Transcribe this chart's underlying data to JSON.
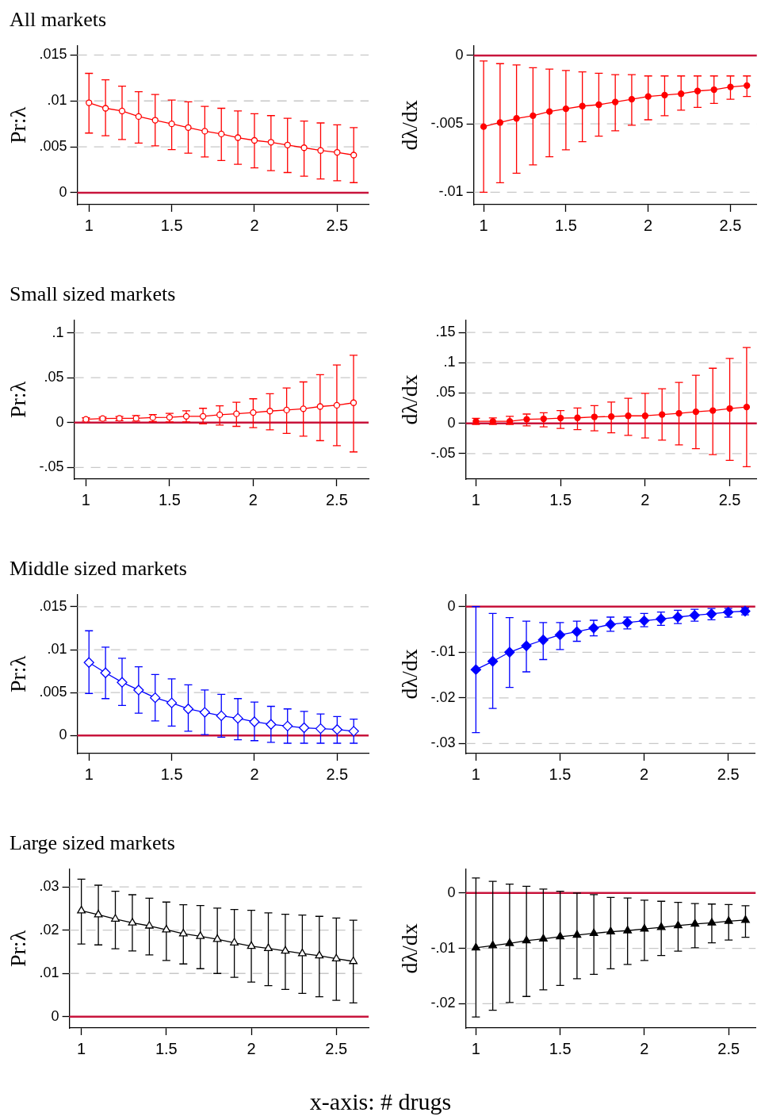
{
  "chart_data": [
    {
      "type": "line",
      "title": "All markets",
      "ylabel": "Pr:λ",
      "color": "#ff0000",
      "marker": "circle",
      "grid": "y",
      "xlim": [
        0.93,
        2.69
      ],
      "xticks": [
        1,
        1.5,
        2,
        2.5
      ],
      "ylim": [
        -0.0013,
        0.016
      ],
      "yticks": [
        {
          "value": 0,
          "label": "0"
        },
        {
          "value": 0.005,
          "label": ".005"
        },
        {
          "value": 0.01,
          "label": ".01"
        },
        {
          "value": 0.015,
          "label": ".015"
        }
      ],
      "ref_lines": [
        {
          "axis": "y",
          "value": 0,
          "color": "#c8143c"
        }
      ],
      "x": [
        1,
        1.1,
        1.2,
        1.3,
        1.4,
        1.5,
        1.6,
        1.7,
        1.8,
        1.9,
        2,
        2.1,
        2.2,
        2.3,
        2.4,
        2.5,
        2.6
      ],
      "values": [
        0.0098,
        0.0092,
        0.0089,
        0.0083,
        0.0079,
        0.0075,
        0.0071,
        0.0067,
        0.0064,
        0.006,
        0.0057,
        0.0055,
        0.0052,
        0.0049,
        0.0046,
        0.0044,
        0.0041
      ],
      "errors": [
        [
          0.0065,
          0.013
        ],
        [
          0.0062,
          0.0123
        ],
        [
          0.0058,
          0.0116
        ],
        [
          0.0054,
          0.011
        ],
        [
          0.0051,
          0.0107
        ],
        [
          0.0047,
          0.0101
        ],
        [
          0.0043,
          0.0099
        ],
        [
          0.0039,
          0.0094
        ],
        [
          0.0035,
          0.0092
        ],
        [
          0.0031,
          0.0089
        ],
        [
          0.0027,
          0.0086
        ],
        [
          0.0024,
          0.0084
        ],
        [
          0.0022,
          0.0081
        ],
        [
          0.0018,
          0.0078
        ],
        [
          0.0015,
          0.0076
        ],
        [
          0.0013,
          0.0074
        ],
        [
          0.0011,
          0.0071
        ]
      ]
    },
    {
      "type": "line",
      "ylabel": "dλ/dx",
      "color": "#ff0000",
      "marker": "circle",
      "grid": "y",
      "xlim": [
        0.94,
        2.66
      ],
      "xticks": [
        1,
        1.5,
        2,
        2.5
      ],
      "ylim": [
        -0.0109,
        0.0007
      ],
      "yticks": [
        {
          "value": -0.01,
          "label": "-.01"
        },
        {
          "value": -0.005,
          "label": "-.005"
        },
        {
          "value": 0,
          "label": "0"
        }
      ],
      "ref_lines": [
        {
          "axis": "y",
          "value": 0,
          "color": "#c8143c"
        }
      ],
      "x": [
        1,
        1.1,
        1.2,
        1.3,
        1.4,
        1.5,
        1.6,
        1.7,
        1.8,
        1.9,
        2,
        2.1,
        2.2,
        2.3,
        2.4,
        2.5,
        2.6
      ],
      "values": [
        -0.0052,
        -0.0049,
        -0.0046,
        -0.0044,
        -0.0041,
        -0.0039,
        -0.0037,
        -0.0036,
        -0.0034,
        -0.0032,
        -0.003,
        -0.0029,
        -0.0028,
        -0.0026,
        -0.0025,
        -0.0023,
        -0.0022
      ],
      "errors": [
        [
          -0.01,
          -0.0004
        ],
        [
          -0.0093,
          -0.0006
        ],
        [
          -0.0086,
          -0.0007
        ],
        [
          -0.008,
          -0.0009
        ],
        [
          -0.0074,
          -0.001
        ],
        [
          -0.0069,
          -0.0011
        ],
        [
          -0.0063,
          -0.0012
        ],
        [
          -0.0059,
          -0.0013
        ],
        [
          -0.0055,
          -0.0014
        ],
        [
          -0.0051,
          -0.0014
        ],
        [
          -0.0047,
          -0.0015
        ],
        [
          -0.0044,
          -0.0015
        ],
        [
          -0.004,
          -0.0015
        ],
        [
          -0.0038,
          -0.0015
        ],
        [
          -0.0035,
          -0.0015
        ],
        [
          -0.0032,
          -0.0015
        ],
        [
          -0.003,
          -0.0015
        ]
      ]
    },
    {
      "type": "line",
      "title": "Small sized markets",
      "ylabel": "Pr:λ",
      "color": "#ff0000",
      "marker": "circle",
      "grid": "y",
      "xlim": [
        0.93,
        2.69
      ],
      "xticks": [
        1,
        1.5,
        2,
        2.5
      ],
      "ylim": [
        -0.063,
        0.114
      ],
      "yticks": [
        {
          "value": -0.05,
          "label": "-.05"
        },
        {
          "value": 0,
          "label": "0"
        },
        {
          "value": 0.05,
          "label": ".05"
        },
        {
          "value": 0.1,
          "label": ".1"
        }
      ],
      "ref_lines": [
        {
          "axis": "y",
          "value": 0,
          "color": "#c8143c"
        }
      ],
      "x": [
        1,
        1.1,
        1.2,
        1.3,
        1.4,
        1.5,
        1.6,
        1.7,
        1.8,
        1.9,
        2,
        2.1,
        2.2,
        2.3,
        2.4,
        2.5,
        2.6
      ],
      "values": [
        0.0036,
        0.0045,
        0.0047,
        0.0047,
        0.0056,
        0.0059,
        0.007,
        0.007,
        0.0087,
        0.0098,
        0.0112,
        0.0128,
        0.014,
        0.0154,
        0.0179,
        0.0193,
        0.0221
      ],
      "errors": [
        [
          0.0017,
          0.0053
        ],
        [
          0.0025,
          0.0061
        ],
        [
          0.0022,
          0.0067
        ],
        [
          0.0017,
          0.0078
        ],
        [
          0.0011,
          0.0089
        ],
        [
          0.0008,
          0.0103
        ],
        [
          0.0008,
          0.0131
        ],
        [
          -0.0014,
          0.0159
        ],
        [
          -0.0028,
          0.0187
        ],
        [
          -0.0042,
          0.0226
        ],
        [
          -0.0056,
          0.0265
        ],
        [
          -0.0081,
          0.0321
        ],
        [
          -0.012,
          0.0385
        ],
        [
          -0.0151,
          0.0453
        ],
        [
          -0.0201,
          0.0534
        ],
        [
          -0.0257,
          0.0642
        ],
        [
          -0.0327,
          0.0751
        ]
      ]
    },
    {
      "type": "line",
      "ylabel": "dλ/dx",
      "color": "#ff0000",
      "marker": "circle",
      "grid": "y",
      "xlim": [
        0.94,
        2.66
      ],
      "xticks": [
        1,
        1.5,
        2,
        2.5
      ],
      "ylim": [
        -0.092,
        0.17
      ],
      "yticks": [
        {
          "value": -0.05,
          "label": "-.05"
        },
        {
          "value": 0,
          "label": "0"
        },
        {
          "value": 0.05,
          "label": ".05"
        },
        {
          "value": 0.1,
          "label": ".1"
        },
        {
          "value": 0.15,
          "label": ".15"
        }
      ],
      "ref_lines": [
        {
          "axis": "y",
          "value": 0,
          "color": "#c8143c"
        }
      ],
      "x": [
        1,
        1.1,
        1.2,
        1.3,
        1.4,
        1.5,
        1.6,
        1.7,
        1.8,
        1.9,
        2,
        2.1,
        2.2,
        2.3,
        2.4,
        2.5,
        2.6
      ],
      "values": [
        0.0033,
        0.0033,
        0.0033,
        0.0066,
        0.0074,
        0.0087,
        0.0091,
        0.0107,
        0.0112,
        0.0124,
        0.0124,
        0.0145,
        0.0165,
        0.019,
        0.0211,
        0.0244,
        0.0269
      ],
      "errors": [
        [
          -0.0017,
          0.0083
        ],
        [
          -0.0017,
          0.009
        ],
        [
          -0.0017,
          0.0116
        ],
        [
          -0.0041,
          0.0153
        ],
        [
          -0.0058,
          0.0174
        ],
        [
          -0.0083,
          0.0211
        ],
        [
          -0.0103,
          0.0252
        ],
        [
          -0.0124,
          0.0293
        ],
        [
          -0.0157,
          0.0351
        ],
        [
          -0.0198,
          0.0413
        ],
        [
          -0.024,
          0.0496
        ],
        [
          -0.0277,
          0.057
        ],
        [
          -0.0355,
          0.0674
        ],
        [
          -0.0417,
          0.0793
        ],
        [
          -0.0517,
          0.0909
        ],
        [
          -0.0612,
          0.107
        ],
        [
          -0.0715,
          0.1252
        ]
      ]
    },
    {
      "type": "line",
      "title": "Middle sized markets",
      "ylabel": "Pr:λ",
      "color": "#0000ff",
      "marker": "diamond",
      "grid": "y",
      "xlim": [
        0.93,
        2.69
      ],
      "xticks": [
        1,
        1.5,
        2,
        2.5
      ],
      "ylim": [
        -0.0021,
        0.0164
      ],
      "yticks": [
        {
          "value": 0,
          "label": "0"
        },
        {
          "value": 0.005,
          "label": ".005"
        },
        {
          "value": 0.01,
          "label": ".01"
        },
        {
          "value": 0.015,
          "label": ".015"
        }
      ],
      "ref_lines": [
        {
          "axis": "y",
          "value": 0,
          "color": "#c8143c"
        }
      ],
      "x": [
        1,
        1.1,
        1.2,
        1.3,
        1.4,
        1.5,
        1.6,
        1.7,
        1.8,
        1.9,
        2,
        2.1,
        2.2,
        2.3,
        2.4,
        2.5,
        2.6
      ],
      "values": [
        0.0085,
        0.0073,
        0.0062,
        0.0053,
        0.0044,
        0.0038,
        0.0031,
        0.0027,
        0.0023,
        0.002,
        0.0016,
        0.0013,
        0.0011,
        0.0009,
        0.0008,
        0.0007,
        0.0005
      ],
      "errors": [
        [
          0.0049,
          0.0122
        ],
        [
          0.0043,
          0.0103
        ],
        [
          0.0035,
          0.009
        ],
        [
          0.0026,
          0.008
        ],
        [
          0.0017,
          0.0071
        ],
        [
          0.0011,
          0.0066
        ],
        [
          0.0005,
          0.0059
        ],
        [
          0.0001,
          0.0053
        ],
        [
          -0.0002,
          0.0048
        ],
        [
          -0.0005,
          0.0043
        ],
        [
          -0.0006,
          0.0039
        ],
        [
          -0.0008,
          0.0034
        ],
        [
          -0.0009,
          0.0031
        ],
        [
          -0.0009,
          0.0028
        ],
        [
          -0.0009,
          0.0025
        ],
        [
          -0.0009,
          0.0022
        ],
        [
          -0.0009,
          0.0019
        ]
      ]
    },
    {
      "type": "line",
      "ylabel": "dλ/dx",
      "color": "#0000ff",
      "marker": "diamond",
      "grid": "y",
      "xlim": [
        0.94,
        2.66
      ],
      "xticks": [
        1,
        1.5,
        2,
        2.5
      ],
      "ylim": [
        -0.0322,
        0.0026
      ],
      "yticks": [
        {
          "value": -0.03,
          "label": "-.03"
        },
        {
          "value": -0.02,
          "label": "-.02"
        },
        {
          "value": -0.01,
          "label": "-.01"
        },
        {
          "value": 0,
          "label": "0"
        }
      ],
      "ref_lines": [
        {
          "axis": "y",
          "value": 0,
          "color": "#c8143c"
        }
      ],
      "x": [
        1,
        1.1,
        1.2,
        1.3,
        1.4,
        1.5,
        1.6,
        1.7,
        1.8,
        1.9,
        2,
        2.1,
        2.2,
        2.3,
        2.4,
        2.5,
        2.6
      ],
      "values": [
        -0.0138,
        -0.012,
        -0.01,
        -0.0086,
        -0.0073,
        -0.0062,
        -0.0055,
        -0.0047,
        -0.0039,
        -0.0035,
        -0.0031,
        -0.0027,
        -0.0023,
        -0.0019,
        -0.0016,
        -0.0012,
        -0.001
      ],
      "errors": [
        [
          -0.0276,
          0
        ],
        [
          -0.0223,
          -0.0015
        ],
        [
          -0.0177,
          -0.0024
        ],
        [
          -0.0143,
          -0.0032
        ],
        [
          -0.0116,
          -0.0035
        ],
        [
          -0.0094,
          -0.0035
        ],
        [
          -0.0076,
          -0.0032
        ],
        [
          -0.0064,
          -0.003
        ],
        [
          -0.0054,
          -0.0023
        ],
        [
          -0.0049,
          -0.0023
        ],
        [
          -0.0044,
          -0.0015
        ],
        [
          -0.0041,
          -0.0012
        ],
        [
          -0.0037,
          -0.0008
        ],
        [
          -0.0032,
          -0.0006
        ],
        [
          -0.0029,
          -0.0004
        ],
        [
          -0.0023,
          -0.0004
        ],
        [
          -0.0018,
          -0.0003
        ]
      ]
    },
    {
      "type": "line",
      "title": "Large sized markets",
      "ylabel": "Pr:λ",
      "color": "#000000",
      "marker": "triangle",
      "grid": "y",
      "xlim": [
        0.93,
        2.69
      ],
      "xticks": [
        1,
        1.5,
        2,
        2.5
      ],
      "ylim": [
        -0.0026,
        0.0341
      ],
      "yticks": [
        {
          "value": 0,
          "label": "0"
        },
        {
          "value": 0.01,
          "label": ".01"
        },
        {
          "value": 0.02,
          "label": ".02"
        },
        {
          "value": 0.03,
          "label": ".03"
        }
      ],
      "ref_lines": [
        {
          "axis": "y",
          "value": 0,
          "color": "#c8143c"
        }
      ],
      "x": [
        1,
        1.1,
        1.2,
        1.3,
        1.4,
        1.5,
        1.6,
        1.7,
        1.8,
        1.9,
        2,
        2.1,
        2.2,
        2.3,
        2.4,
        2.5,
        2.6
      ],
      "values": [
        0.0245,
        0.0236,
        0.0226,
        0.0217,
        0.021,
        0.0201,
        0.0192,
        0.0186,
        0.0179,
        0.0171,
        0.0163,
        0.0158,
        0.0152,
        0.0146,
        0.0141,
        0.0134,
        0.0128
      ],
      "errors": [
        [
          0.0168,
          0.0318
        ],
        [
          0.0166,
          0.0304
        ],
        [
          0.0157,
          0.029
        ],
        [
          0.0152,
          0.0282
        ],
        [
          0.0143,
          0.0274
        ],
        [
          0.013,
          0.0265
        ],
        [
          0.0122,
          0.0259
        ],
        [
          0.0111,
          0.0257
        ],
        [
          0.01,
          0.0251
        ],
        [
          0.0091,
          0.0248
        ],
        [
          0.008,
          0.0246
        ],
        [
          0.0072,
          0.024
        ],
        [
          0.0063,
          0.0237
        ],
        [
          0.0054,
          0.0235
        ],
        [
          0.0046,
          0.0232
        ],
        [
          0.0038,
          0.0228
        ],
        [
          0.0032,
          0.0223
        ]
      ]
    },
    {
      "type": "line",
      "ylabel": "dλ/dx",
      "color": "#000000",
      "marker": "triangle",
      "grid": "y",
      "xlim": [
        0.94,
        2.66
      ],
      "xticks": [
        1,
        1.5,
        2,
        2.5
      ],
      "ylim": [
        -0.0244,
        0.0043
      ],
      "yticks": [
        {
          "value": -0.02,
          "label": "-.02"
        },
        {
          "value": -0.01,
          "label": "-.01"
        },
        {
          "value": 0,
          "label": "0"
        }
      ],
      "ref_lines": [
        {
          "axis": "y",
          "value": 0,
          "color": "#c8143c"
        }
      ],
      "annotations": [
        "x-axis: # drugs"
      ],
      "x": [
        1,
        1.1,
        1.2,
        1.3,
        1.4,
        1.5,
        1.6,
        1.7,
        1.8,
        1.9,
        2,
        2.1,
        2.2,
        2.3,
        2.4,
        2.5,
        2.6
      ],
      "values": [
        -0.0099,
        -0.0095,
        -0.0091,
        -0.0086,
        -0.0083,
        -0.0079,
        -0.0076,
        -0.0073,
        -0.007,
        -0.0068,
        -0.0065,
        -0.0062,
        -0.0059,
        -0.0056,
        -0.0054,
        -0.0051,
        -0.0049
      ],
      "errors": [
        [
          -0.0224,
          0.0027
        ],
        [
          -0.0212,
          0.0021
        ],
        [
          -0.0198,
          0.0016
        ],
        [
          -0.0187,
          0.0012
        ],
        [
          -0.0175,
          0.0007
        ],
        [
          -0.0167,
          0.0003
        ],
        [
          -0.0155,
          0
        ],
        [
          -0.0147,
          -0.0003
        ],
        [
          -0.0137,
          -0.0008
        ],
        [
          -0.0129,
          -0.0009
        ],
        [
          -0.0122,
          -0.0013
        ],
        [
          -0.0113,
          -0.0015
        ],
        [
          -0.0105,
          -0.0017
        ],
        [
          -0.0099,
          -0.0019
        ],
        [
          -0.009,
          -0.002
        ],
        [
          -0.0085,
          -0.0021
        ],
        [
          -0.008,
          -0.0023
        ]
      ]
    }
  ]
}
